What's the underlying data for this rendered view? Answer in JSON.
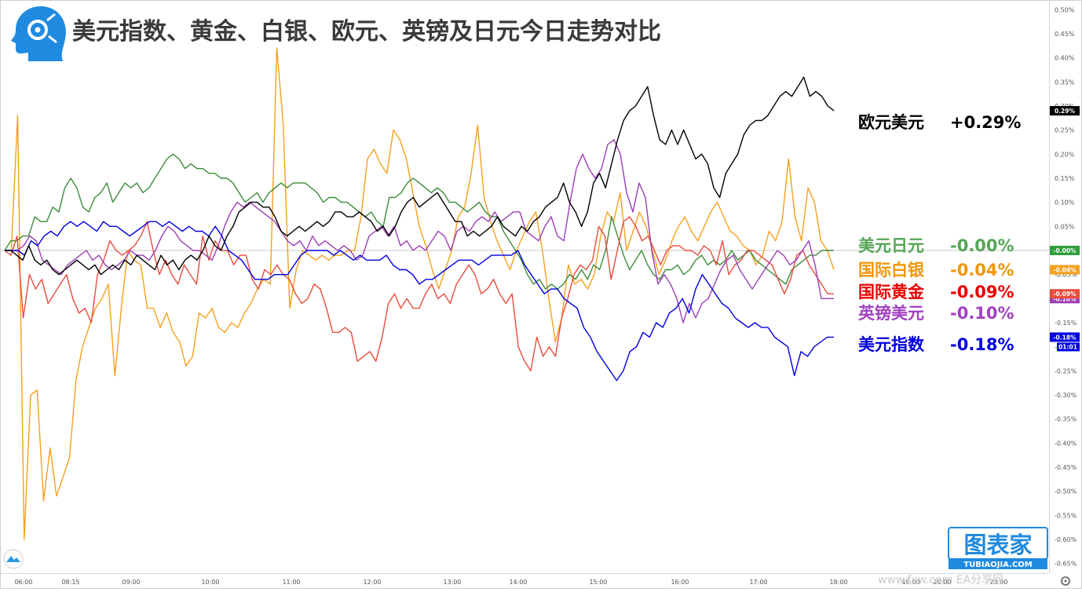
{
  "header": {
    "title": "美元指数、黄金、白银、欧元、英镑及日元今日走势对比"
  },
  "brand": {
    "name": "图表家",
    "domain": "TUBIAOJIA.COM",
    "watermark": "www.fxw.com EA分享网"
  },
  "chart_data": {
    "type": "line",
    "x_tick_labels": [
      "06:00",
      "08:15",
      "09:00",
      "10:00",
      "11:00",
      "12:00",
      "13:00",
      "14:00",
      "15:00",
      "16:00",
      "17:00",
      "18:00",
      "19:00",
      "20:00",
      "23:00"
    ],
    "y_tick_labels": [
      "0.50%",
      "0.45%",
      "0.40%",
      "0.35%",
      "0.30%",
      "0.25%",
      "0.20%",
      "0.15%",
      "0.10%",
      "0.05%",
      "0.00%",
      "-0.05%",
      "-0.10%",
      "-0.15%",
      "-0.20%",
      "-0.25%",
      "-0.30%",
      "-0.35%",
      "-0.40%",
      "-0.45%",
      "-0.50%",
      "-0.55%",
      "-0.60%",
      "-0.65%"
    ],
    "ylim": [
      -0.67,
      0.52
    ],
    "ylabel": "",
    "xlabel": "",
    "grid": false,
    "zero_line": true,
    "time_label": "01:01",
    "series": [
      {
        "name": "欧元美元",
        "change": "+0.29%",
        "tag": "0.29%",
        "color": "#000000",
        "label_color": "#000000",
        "values": [
          0.0,
          0.0,
          -0.01,
          -0.02,
          0.01,
          -0.02,
          -0.03,
          -0.02,
          -0.04,
          -0.05,
          -0.04,
          -0.03,
          -0.02,
          -0.03,
          -0.04,
          -0.03,
          -0.05,
          -0.04,
          -0.03,
          -0.04,
          -0.02,
          -0.03,
          -0.01,
          -0.02,
          -0.03,
          -0.04,
          -0.01,
          -0.03,
          -0.02,
          -0.04,
          -0.02,
          -0.01,
          -0.02,
          0.0,
          0.03,
          0.01,
          0.0,
          0.03,
          0.05,
          0.08,
          0.09,
          0.1,
          0.1,
          0.09,
          0.09,
          0.07,
          0.04,
          0.03,
          0.04,
          0.05,
          0.04,
          0.05,
          0.06,
          0.05,
          0.06,
          0.08,
          0.08,
          0.07,
          0.07,
          0.08,
          0.07,
          0.06,
          0.04,
          0.05,
          0.03,
          0.05,
          0.08,
          0.1,
          0.11,
          0.09,
          0.1,
          0.11,
          0.12,
          0.1,
          0.08,
          0.06,
          0.06,
          0.03,
          0.04,
          0.03,
          0.04,
          0.05,
          0.07,
          0.05,
          0.04,
          0.03,
          0.05,
          0.04,
          0.06,
          0.07,
          0.09,
          0.1,
          0.11,
          0.14,
          0.1,
          0.08,
          0.05,
          0.08,
          0.14,
          0.16,
          0.13,
          0.18,
          0.23,
          0.27,
          0.29,
          0.3,
          0.32,
          0.34,
          0.28,
          0.23,
          0.22,
          0.25,
          0.22,
          0.25,
          0.22,
          0.19,
          0.2,
          0.18,
          0.13,
          0.11,
          0.16,
          0.18,
          0.2,
          0.24,
          0.26,
          0.27,
          0.27,
          0.28,
          0.3,
          0.32,
          0.33,
          0.32,
          0.34,
          0.36,
          0.32,
          0.33,
          0.32,
          0.3,
          0.29
        ]
      },
      {
        "name": "美元日元",
        "change": "-0.00%",
        "tag": "-0.00%",
        "color": "#3c8c3c",
        "label_color": "#55a555",
        "values": [
          0.0,
          0.02,
          0.02,
          0.03,
          0.03,
          0.07,
          0.06,
          0.06,
          0.09,
          0.08,
          0.13,
          0.15,
          0.13,
          0.09,
          0.08,
          0.11,
          0.12,
          0.14,
          0.1,
          0.12,
          0.14,
          0.13,
          0.14,
          0.12,
          0.13,
          0.15,
          0.17,
          0.19,
          0.2,
          0.19,
          0.17,
          0.18,
          0.17,
          0.17,
          0.16,
          0.16,
          0.15,
          0.15,
          0.14,
          0.12,
          0.1,
          0.11,
          0.12,
          0.1,
          0.12,
          0.13,
          0.14,
          0.13,
          0.14,
          0.14,
          0.14,
          0.13,
          0.12,
          0.1,
          0.11,
          0.11,
          0.1,
          0.1,
          0.09,
          0.08,
          0.07,
          0.08,
          0.06,
          0.05,
          0.11,
          0.11,
          0.12,
          0.14,
          0.15,
          0.14,
          0.13,
          0.12,
          0.13,
          0.12,
          0.1,
          0.1,
          0.09,
          0.08,
          0.09,
          0.1,
          0.08,
          0.07,
          0.07,
          0.04,
          0.02,
          0.0,
          -0.02,
          -0.05,
          -0.07,
          -0.06,
          -0.08,
          -0.07,
          -0.08,
          -0.07,
          -0.05,
          -0.06,
          -0.04,
          -0.06,
          -0.03,
          -0.04,
          0.0,
          0.07,
          0.03,
          -0.01,
          -0.04,
          -0.02,
          0.0,
          -0.03,
          -0.05,
          -0.06,
          -0.04,
          -0.04,
          -0.03,
          -0.05,
          -0.04,
          -0.02,
          -0.01,
          -0.03,
          -0.02,
          -0.03,
          -0.02,
          0.0,
          -0.02,
          -0.01,
          0.0,
          -0.02,
          -0.03,
          -0.04,
          -0.05,
          -0.06,
          -0.07,
          -0.04,
          -0.03,
          -0.02,
          -0.01,
          -0.01,
          0.0,
          0.0,
          0.0
        ]
      },
      {
        "name": "国际白银",
        "change": "-0.04%",
        "tag": "-0.04%",
        "color": "#f5a01e",
        "label_color": "#f0960a",
        "values": [
          0.0,
          0.0,
          0.28,
          -0.6,
          -0.3,
          -0.29,
          -0.52,
          -0.41,
          -0.51,
          -0.47,
          -0.43,
          -0.27,
          -0.2,
          -0.16,
          -0.12,
          -0.1,
          -0.07,
          -0.26,
          -0.12,
          0.0,
          -0.02,
          -0.03,
          -0.12,
          -0.12,
          -0.16,
          -0.13,
          -0.17,
          -0.19,
          -0.24,
          -0.22,
          -0.13,
          -0.14,
          -0.12,
          -0.16,
          -0.17,
          -0.15,
          -0.16,
          -0.13,
          -0.11,
          -0.08,
          -0.06,
          -0.07,
          0.42,
          0.26,
          -0.12,
          -0.04,
          0.0,
          -0.01,
          -0.02,
          -0.01,
          -0.02,
          -0.01,
          -0.01,
          0.0,
          0.0,
          0.07,
          0.19,
          0.21,
          0.18,
          0.16,
          0.25,
          0.23,
          0.19,
          0.12,
          0.05,
          0.01,
          -0.04,
          -0.08,
          -0.04,
          0.0,
          0.07,
          0.09,
          0.16,
          0.26,
          0.11,
          0.06,
          0.02,
          -0.01,
          -0.04,
          0.0,
          0.03,
          0.06,
          0.08,
          0.0,
          -0.1,
          -0.19,
          -0.14,
          -0.03,
          -0.07,
          -0.06,
          -0.08,
          -0.05,
          0.03,
          0.08,
          0.06,
          0.12,
          0.0,
          0.04,
          0.08,
          0.05,
          0.0,
          -0.05,
          -0.02,
          0.02,
          0.05,
          0.07,
          0.04,
          0.02,
          0.05,
          0.08,
          0.1,
          0.07,
          0.04,
          0.03,
          0.01,
          0.0,
          -0.03,
          -0.01,
          0.04,
          0.02,
          0.06,
          0.19,
          0.07,
          0.02,
          0.13,
          0.1,
          0.02,
          0.0,
          -0.04
        ]
      },
      {
        "name": "国际黄金",
        "change": "-0.09%",
        "tag": "-0.09%",
        "color": "#e84c3d",
        "label_color": "#e80000",
        "values": [
          0.0,
          -0.01,
          0.03,
          -0.14,
          -0.05,
          -0.08,
          -0.06,
          -0.11,
          -0.09,
          -0.07,
          -0.05,
          -0.1,
          -0.13,
          -0.12,
          -0.15,
          -0.05,
          -0.02,
          0.02,
          0.0,
          -0.01,
          0.0,
          0.01,
          0.03,
          0.06,
          0.0,
          -0.05,
          -0.02,
          -0.05,
          -0.07,
          -0.03,
          -0.05,
          -0.07,
          0.03,
          -0.02,
          0.02,
          0.0,
          0.0,
          -0.03,
          -0.01,
          -0.01,
          -0.06,
          -0.08,
          -0.04,
          -0.05,
          -0.03,
          -0.05,
          -0.06,
          -0.09,
          -0.11,
          -0.1,
          -0.07,
          -0.08,
          -0.12,
          -0.17,
          -0.17,
          -0.16,
          -0.17,
          -0.23,
          -0.22,
          -0.21,
          -0.23,
          -0.18,
          -0.11,
          -0.09,
          -0.12,
          -0.1,
          -0.12,
          -0.12,
          -0.09,
          -0.07,
          -0.1,
          -0.09,
          -0.11,
          -0.07,
          -0.05,
          -0.03,
          -0.05,
          -0.09,
          -0.08,
          -0.06,
          -0.09,
          -0.11,
          -0.09,
          -0.2,
          -0.23,
          -0.25,
          -0.18,
          -0.22,
          -0.2,
          -0.22,
          -0.14,
          -0.1,
          -0.05,
          -0.03,
          -0.04,
          -0.02,
          0.05,
          0.03,
          -0.06,
          0.0,
          0.06,
          0.07,
          0.05,
          0.02,
          0.03,
          0.0,
          -0.03,
          0.0,
          0.01,
          0.01,
          0.0,
          0.0,
          -0.01,
          0.01,
          0.0,
          -0.03,
          0.02,
          -0.05,
          -0.03,
          -0.02,
          0.0,
          0.0,
          -0.01,
          -0.02,
          -0.03,
          -0.06,
          -0.09,
          -0.06,
          -0.01,
          0.0,
          -0.03,
          -0.05,
          -0.07,
          -0.09,
          -0.09
        ]
      },
      {
        "name": "英镑美元",
        "change": "-0.10%",
        "tag": "-0.10%",
        "color": "#9b3fb5",
        "label_color": "#a040c0",
        "values": [
          0.0,
          0.0,
          0.0,
          0.01,
          0.03,
          0.02,
          -0.02,
          -0.03,
          -0.04,
          -0.05,
          -0.03,
          -0.02,
          -0.01,
          0.0,
          -0.02,
          -0.01,
          -0.03,
          -0.04,
          -0.03,
          -0.02,
          0.0,
          -0.01,
          -0.01,
          -0.02,
          0.0,
          0.03,
          0.05,
          0.04,
          0.02,
          0.01,
          0.0,
          0.0,
          -0.01,
          -0.02,
          0.01,
          0.05,
          0.08,
          0.1,
          0.09,
          0.1,
          0.09,
          0.08,
          0.07,
          0.06,
          0.04,
          0.02,
          0.01,
          0.02,
          0.0,
          0.03,
          0.01,
          0.02,
          0.01,
          0.0,
          0.01,
          0.0,
          -0.02,
          -0.01,
          0.03,
          0.04,
          0.05,
          0.03,
          0.05,
          0.01,
          0.02,
          0.0,
          0.01,
          0.0,
          0.02,
          0.04,
          0.03,
          0.0,
          0.04,
          0.05,
          0.04,
          0.06,
          0.07,
          0.06,
          0.08,
          0.06,
          0.07,
          0.08,
          0.08,
          0.04,
          0.03,
          0.02,
          0.05,
          0.07,
          0.03,
          0.02,
          0.1,
          0.17,
          0.2,
          0.17,
          0.15,
          0.17,
          0.22,
          0.23,
          0.2,
          0.12,
          0.08,
          0.14,
          0.11,
          0.0,
          -0.07,
          -0.05,
          -0.07,
          -0.1,
          -0.15,
          -0.11,
          -0.14,
          -0.11,
          -0.1,
          -0.07,
          -0.04,
          -0.02,
          -0.01,
          -0.04,
          -0.06,
          -0.08,
          -0.06,
          -0.04,
          -0.02,
          0.0,
          -0.01,
          -0.03,
          -0.02,
          0.0,
          0.02,
          -0.03,
          -0.1,
          -0.1,
          -0.1
        ]
      },
      {
        "name": "美元指数",
        "change": "-0.18%",
        "tag": "-0.18%",
        "color": "#0000e0",
        "label_color": "#0000e0",
        "values": [
          0.0,
          0.0,
          0.0,
          -0.01,
          0.02,
          0.01,
          0.03,
          0.04,
          0.03,
          0.05,
          0.06,
          0.05,
          0.06,
          0.05,
          0.04,
          0.06,
          0.05,
          0.05,
          0.04,
          0.03,
          0.04,
          0.05,
          0.06,
          0.06,
          0.05,
          0.06,
          0.05,
          0.04,
          0.05,
          0.04,
          0.04,
          0.03,
          0.05,
          0.03,
          0.0,
          -0.01,
          -0.02,
          -0.04,
          -0.06,
          -0.06,
          -0.06,
          -0.05,
          -0.05,
          -0.05,
          -0.03,
          -0.01,
          0.0,
          0.0,
          0.0,
          0.0,
          -0.01,
          0.0,
          -0.01,
          -0.02,
          -0.01,
          -0.02,
          -0.02,
          -0.02,
          -0.01,
          -0.03,
          -0.04,
          -0.04,
          -0.05,
          -0.07,
          -0.06,
          -0.06,
          -0.05,
          -0.04,
          -0.03,
          -0.02,
          -0.02,
          -0.02,
          -0.03,
          -0.02,
          -0.01,
          -0.01,
          -0.01,
          -0.01,
          0.0,
          -0.03,
          -0.05,
          -0.07,
          -0.09,
          -0.08,
          -0.08,
          -0.1,
          -0.11,
          -0.12,
          -0.16,
          -0.18,
          -0.21,
          -0.23,
          -0.25,
          -0.27,
          -0.25,
          -0.21,
          -0.2,
          -0.17,
          -0.18,
          -0.15,
          -0.16,
          -0.13,
          -0.12,
          -0.1,
          -0.13,
          -0.08,
          -0.05,
          -0.07,
          -0.09,
          -0.11,
          -0.12,
          -0.14,
          -0.15,
          -0.16,
          -0.15,
          -0.16,
          -0.16,
          -0.18,
          -0.19,
          -0.2,
          -0.26,
          -0.21,
          -0.22,
          -0.2,
          -0.19,
          -0.18,
          -0.18
        ]
      }
    ]
  }
}
